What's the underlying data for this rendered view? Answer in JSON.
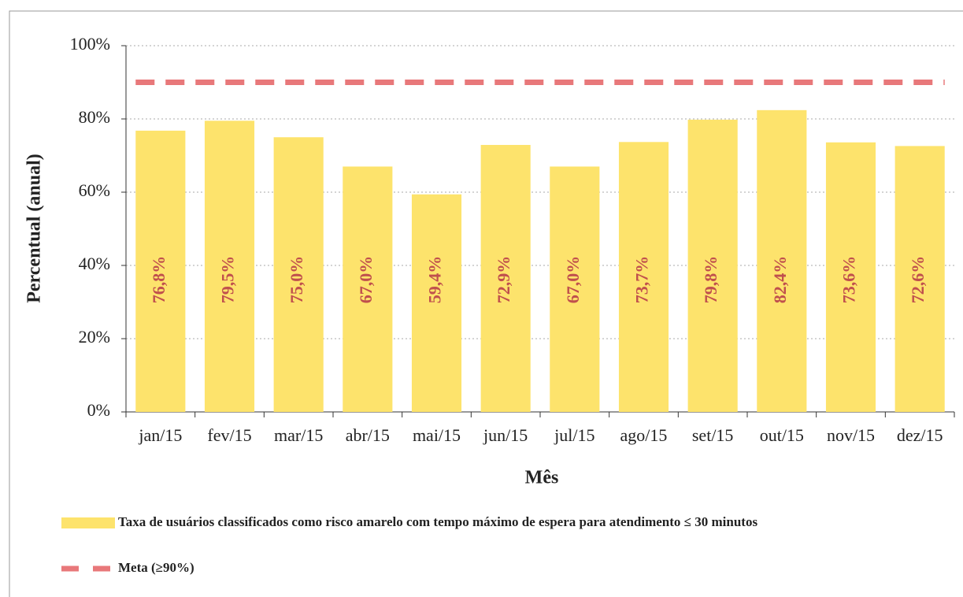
{
  "chart_data": {
    "type": "bar",
    "y_label": "Percentual (anual)",
    "x_label": "Mês",
    "categories": [
      "jan/15",
      "fev/15",
      "mar/15",
      "abr/15",
      "mai/15",
      "jun/15",
      "jul/15",
      "ago/15",
      "set/15",
      "out/15",
      "nov/15",
      "dez/15"
    ],
    "series": [
      {
        "name": "Taxa de usuários classificados como risco amarelo com tempo máximo de espera para atendimento ≤ 30 minutos",
        "type": "bar",
        "color": "#fde36c",
        "values": [
          76.8,
          79.5,
          75.0,
          67.0,
          59.4,
          72.9,
          67.0,
          73.7,
          79.8,
          82.4,
          73.6,
          72.6
        ],
        "value_labels": [
          "76,8%",
          "79,5%",
          "75,0%",
          "67,0%",
          "59,4%",
          "72,9%",
          "67,0%",
          "73,7%",
          "79,8%",
          "82,4%",
          "73,6%",
          "72,6%"
        ]
      },
      {
        "name": "Meta (≥90%)",
        "type": "line",
        "color": "#e8787a",
        "values": [
          90,
          90,
          90,
          90,
          90,
          90,
          90,
          90,
          90,
          90,
          90,
          90
        ]
      }
    ],
    "ylim": [
      0,
      100
    ],
    "yticks": [
      {
        "value": 0,
        "label": "0%"
      },
      {
        "value": 20,
        "label": "20%"
      },
      {
        "value": 40,
        "label": "40%"
      },
      {
        "value": 60,
        "label": "60%"
      },
      {
        "value": 80,
        "label": "80%"
      },
      {
        "value": 100,
        "label": "100%"
      }
    ],
    "grid": true,
    "legend": "bottom"
  }
}
